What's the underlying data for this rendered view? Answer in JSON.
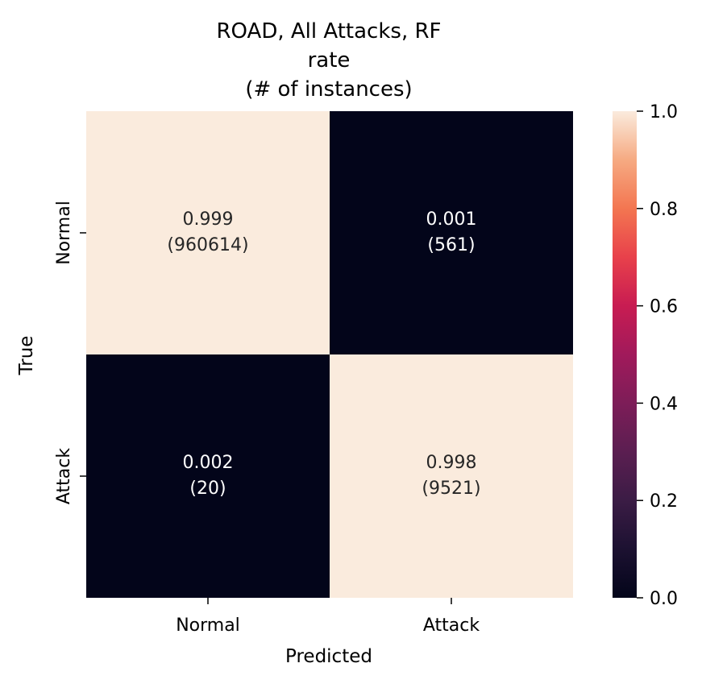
{
  "chart_data": {
    "type": "heatmap",
    "title": [
      "ROAD, All Attacks, RF",
      "rate",
      "(# of instances)"
    ],
    "xlabel": "Predicted",
    "ylabel": "True",
    "x_categories": [
      "Normal",
      "Attack"
    ],
    "y_categories": [
      "Normal",
      "Attack"
    ],
    "values": [
      [
        0.999,
        0.001
      ],
      [
        0.002,
        0.998
      ]
    ],
    "counts": [
      [
        960614,
        561
      ],
      [
        20,
        9521
      ]
    ],
    "cell_text": [
      [
        "0.999",
        "(960614)",
        "0.001",
        "(561)"
      ],
      [
        "0.002",
        "(20)",
        "0.998",
        "(9521)"
      ]
    ],
    "colorbar": {
      "range": [
        0.0,
        1.0
      ],
      "ticks": [
        "0.0",
        "0.2",
        "0.4",
        "0.6",
        "0.8",
        "1.0"
      ],
      "colormap": "rocket",
      "low_color": "#03051a",
      "high_color": "#faebdd"
    }
  }
}
